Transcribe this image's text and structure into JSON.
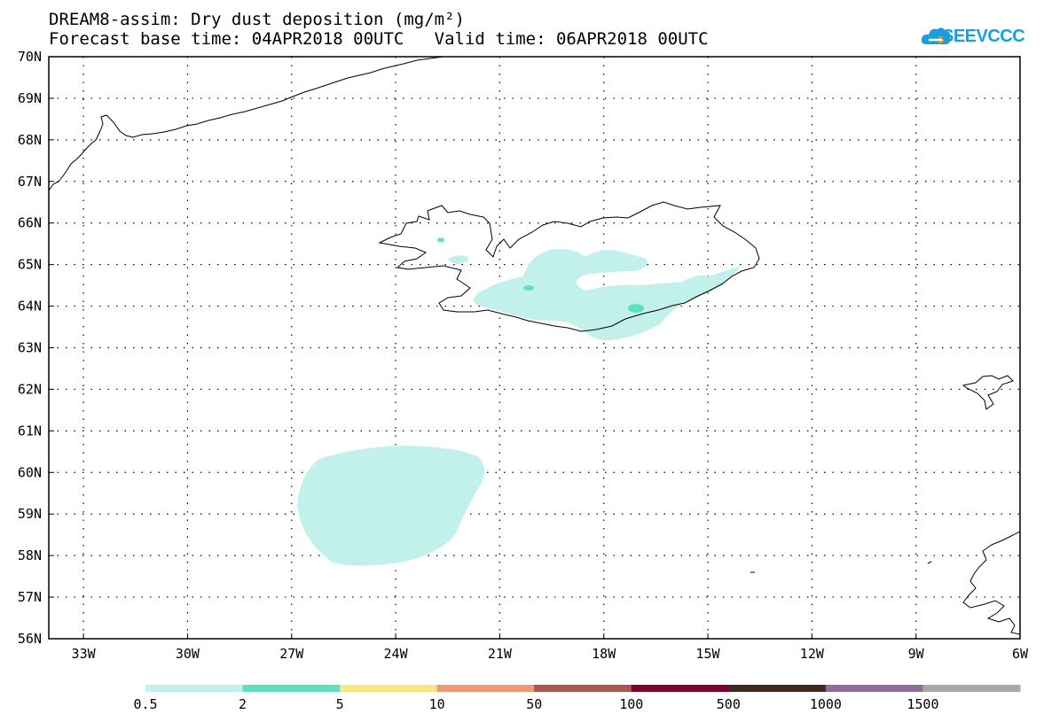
{
  "title": {
    "line1": "DREAM8-assim: Dry dust deposition (mg/m²)",
    "line2": "Forecast base time: 04APR2018 00UTC   Valid time: 06APR2018 00UTC"
  },
  "logo": {
    "text": "SEEVCCC",
    "icon": "cloud-icon",
    "color": "#1a9ee0"
  },
  "map": {
    "lon_range": [
      -34,
      -6
    ],
    "lat_range": [
      56,
      70
    ],
    "lon_ticks": [
      {
        "value": -33,
        "label": "33W"
      },
      {
        "value": -30,
        "label": "30W"
      },
      {
        "value": -27,
        "label": "27W"
      },
      {
        "value": -24,
        "label": "24W"
      },
      {
        "value": -21,
        "label": "21W"
      },
      {
        "value": -18,
        "label": "18W"
      },
      {
        "value": -15,
        "label": "15W"
      },
      {
        "value": -12,
        "label": "12W"
      },
      {
        "value": -9,
        "label": "9W"
      },
      {
        "value": -6,
        "label": "6W"
      }
    ],
    "lat_ticks": [
      {
        "value": 70,
        "label": "70N"
      },
      {
        "value": 69,
        "label": "69N"
      },
      {
        "value": 68,
        "label": "68N"
      },
      {
        "value": 67,
        "label": "67N"
      },
      {
        "value": 66,
        "label": "66N"
      },
      {
        "value": 65,
        "label": "65N"
      },
      {
        "value": 64,
        "label": "64N"
      },
      {
        "value": 63,
        "label": "63N"
      },
      {
        "value": 62,
        "label": "62N"
      },
      {
        "value": 61,
        "label": "61N"
      },
      {
        "value": 60,
        "label": "60N"
      },
      {
        "value": 59,
        "label": "59N"
      },
      {
        "value": 58,
        "label": "58N"
      },
      {
        "value": 57,
        "label": "57N"
      },
      {
        "value": 56,
        "label": "56N"
      }
    ],
    "grid": "dotted",
    "regions": [
      "Greenland coast",
      "Iceland",
      "Faroe Islands",
      "Scotland"
    ],
    "deposition_areas": [
      {
        "name": "south-atlantic-patch",
        "level": "0.5-2",
        "center": [
          -24.2,
          59.2
        ]
      },
      {
        "name": "iceland-interior",
        "level": "0.5-2",
        "center": [
          -18.5,
          64.3
        ]
      },
      {
        "name": "iceland-hotspot-south",
        "level": "2-5",
        "center": [
          -16.9,
          63.9
        ]
      },
      {
        "name": "iceland-hotspot-west",
        "level": "2-5",
        "center": [
          -20.9,
          64.4
        ]
      }
    ]
  },
  "legend": {
    "colors": [
      "#c2f0ea",
      "#5de0c2",
      "#f8e880",
      "#f09878",
      "#a85850",
      "#800030",
      "#40281c",
      "#906c98",
      "#a8a8a8"
    ],
    "labels": [
      "0.5",
      "2",
      "5",
      "10",
      "50",
      "100",
      "500",
      "1000",
      "1500"
    ]
  }
}
